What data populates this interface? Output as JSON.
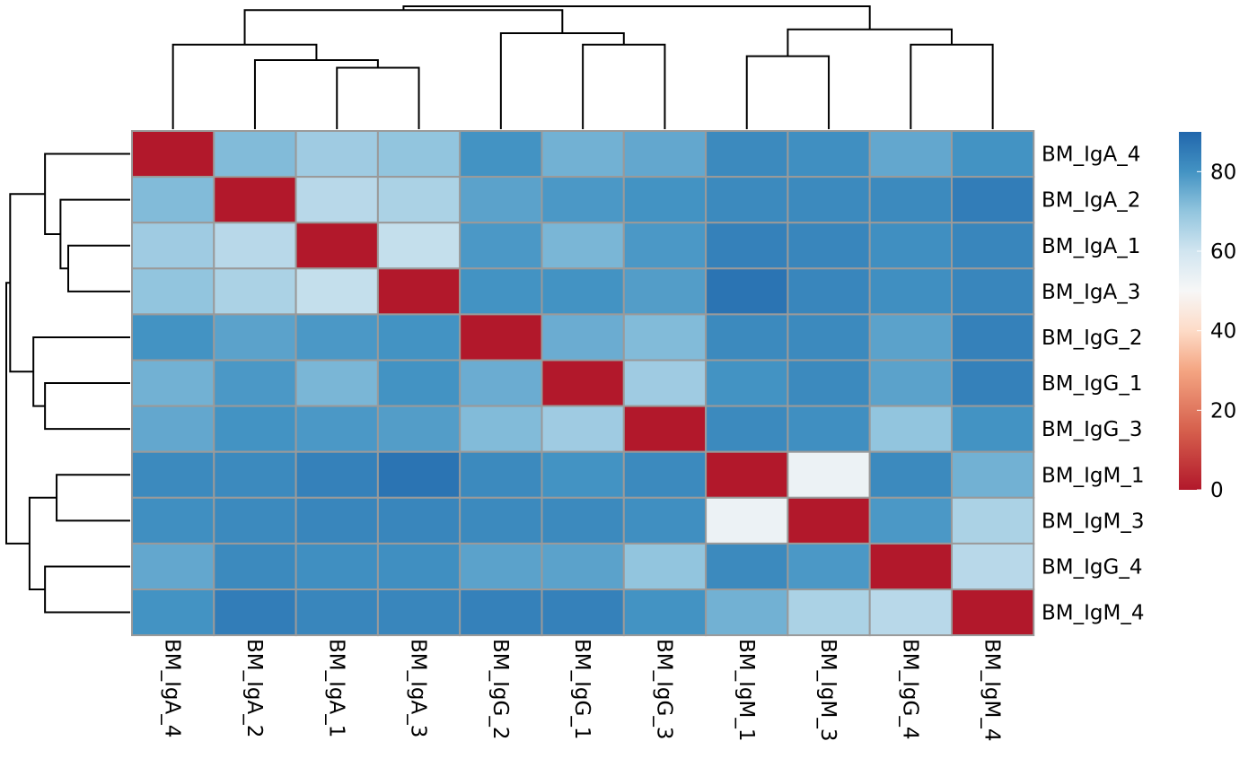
{
  "chart_data": {
    "type": "heatmap",
    "title": "",
    "row_labels": [
      "BM_IgA_4",
      "BM_IgA_2",
      "BM_IgA_1",
      "BM_IgA_3",
      "BM_IgG_2",
      "BM_IgG_1",
      "BM_IgG_3",
      "BM_IgM_1",
      "BM_IgM_3",
      "BM_IgG_4",
      "BM_IgM_4"
    ],
    "col_labels": [
      "BM_IgA_4",
      "BM_IgA_2",
      "BM_IgA_1",
      "BM_IgA_3",
      "BM_IgG_2",
      "BM_IgG_1",
      "BM_IgG_3",
      "BM_IgM_1",
      "BM_IgM_3",
      "BM_IgG_4",
      "BM_IgM_4"
    ],
    "values": [
      [
        0,
        72,
        68,
        70,
        80,
        74,
        76,
        82,
        81,
        76,
        80
      ],
      [
        72,
        0,
        64,
        66,
        77,
        79,
        80,
        82,
        82,
        82,
        85
      ],
      [
        68,
        64,
        0,
        62,
        79,
        73,
        79,
        84,
        83,
        81,
        83
      ],
      [
        70,
        66,
        62,
        0,
        80,
        80,
        78,
        87,
        83,
        81,
        83
      ],
      [
        80,
        77,
        79,
        80,
        0,
        75,
        72,
        82,
        82,
        77,
        84
      ],
      [
        74,
        79,
        73,
        80,
        75,
        0,
        68,
        80,
        82,
        77,
        84
      ],
      [
        76,
        80,
        79,
        78,
        72,
        68,
        0,
        82,
        81,
        70,
        80
      ],
      [
        82,
        82,
        84,
        87,
        82,
        80,
        82,
        0,
        53,
        82,
        74
      ],
      [
        81,
        82,
        83,
        83,
        82,
        82,
        81,
        53,
        0,
        79,
        66
      ],
      [
        76,
        82,
        81,
        81,
        77,
        77,
        70,
        82,
        79,
        0,
        64
      ],
      [
        80,
        85,
        83,
        83,
        84,
        84,
        80,
        74,
        66,
        64,
        0
      ]
    ],
    "color_scale": {
      "min": 0,
      "max": 90,
      "ticks": [
        0,
        20,
        40,
        60,
        80
      ],
      "stops": [
        {
          "value": 0,
          "color": "#b2182b"
        },
        {
          "value": 15,
          "color": "#d6604d"
        },
        {
          "value": 30,
          "color": "#f4a582"
        },
        {
          "value": 40,
          "color": "#fddbc7"
        },
        {
          "value": 50,
          "color": "#f7f7f7"
        },
        {
          "value": 60,
          "color": "#d1e5f0"
        },
        {
          "value": 70,
          "color": "#92c5de"
        },
        {
          "value": 80,
          "color": "#4393c3"
        },
        {
          "value": 90,
          "color": "#2166ac"
        }
      ]
    },
    "dendrogram": {
      "merges": [
        {
          "a": 2,
          "b": 3,
          "height": 0.16
        },
        {
          "a": 1,
          "b": "m0",
          "height": 0.18
        },
        {
          "a": 0,
          "b": "m1",
          "height": 0.22
        },
        {
          "a": 5,
          "b": 6,
          "height": 0.22
        },
        {
          "a": 4,
          "b": "m3",
          "height": 0.25
        },
        {
          "a": "m2",
          "b": "m4",
          "height": 0.31
        },
        {
          "a": 7,
          "b": 8,
          "height": 0.19
        },
        {
          "a": 9,
          "b": 10,
          "height": 0.22
        },
        {
          "a": "m6",
          "b": "m7",
          "height": 0.26
        },
        {
          "a": "m5",
          "b": "m8",
          "height": 0.32
        }
      ]
    }
  }
}
